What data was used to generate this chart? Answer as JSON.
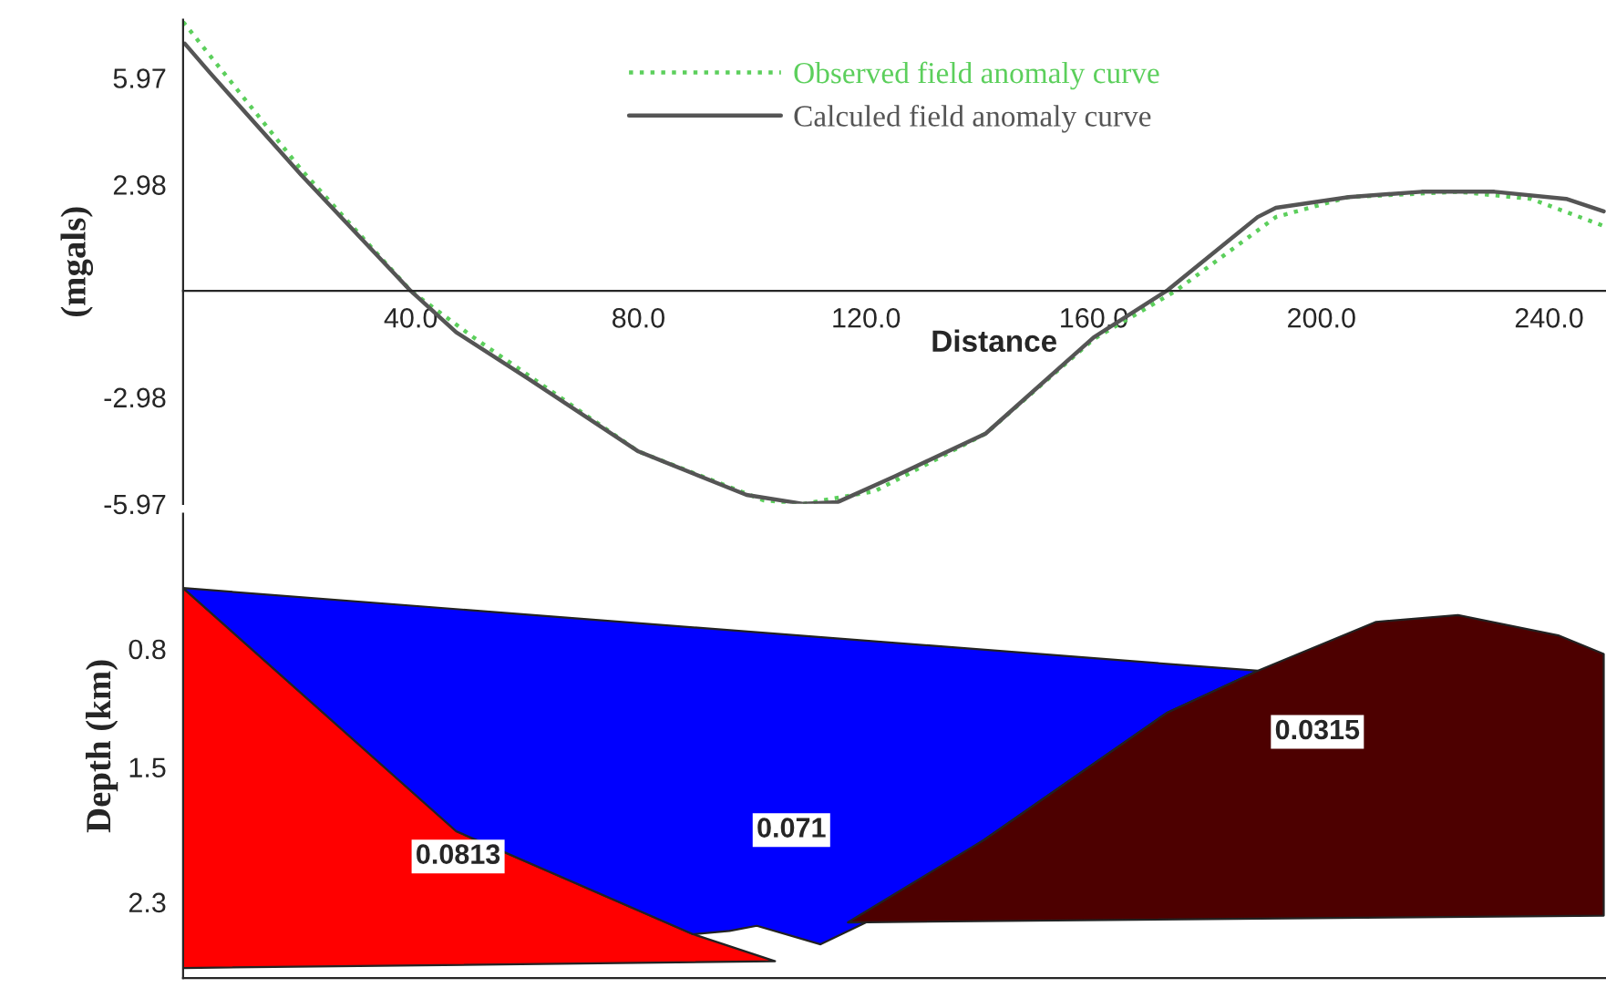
{
  "chart_data": [
    {
      "type": "line",
      "xlabel": "Distance",
      "ylabel": "(mgals)",
      "xlim": [
        0,
        250
      ],
      "xticks": [
        {
          "value": 40,
          "label": "40.0"
        },
        {
          "value": 80,
          "label": "80.0"
        },
        {
          "value": 120,
          "label": "120.0"
        },
        {
          "value": 160,
          "label": "160.0"
        },
        {
          "value": 200,
          "label": "200.0"
        },
        {
          "value": 240,
          "label": "240.0"
        }
      ],
      "ylim": [
        -5.97,
        7.6
      ],
      "yticks": [
        -5.97,
        -2.98,
        2.98,
        5.97
      ],
      "legend": "top",
      "grid": false,
      "series": [
        {
          "name": "Observed field anomaly curve",
          "color": "#5ccf5c",
          "line_style": "dotted",
          "x": [
            0,
            20.8,
            40,
            51,
            80,
            102,
            109,
            121.6,
            141,
            160,
            174.4,
            192,
            204.8,
            224,
            236.8,
            249.6
          ],
          "values": [
            7.54,
            3.39,
            0,
            -1.3,
            -4.5,
            -5.87,
            -5.97,
            -5.61,
            -4.0,
            -1.35,
            0,
            2.07,
            2.63,
            2.78,
            2.58,
            1.82
          ]
        },
        {
          "name": "Calculed field anomaly curve",
          "color": "#555555",
          "line_style": "solid",
          "x": [
            0.3,
            4.8,
            20.8,
            40,
            48,
            60.8,
            80,
            99,
            109,
            115,
            125,
            141,
            160,
            172.8,
            188.8,
            192,
            204.8,
            217.6,
            230.4,
            243,
            249.6
          ],
          "values": [
            6.93,
            6.1,
            3.24,
            0,
            -1.16,
            -2.48,
            -4.5,
            -5.72,
            -5.97,
            -5.92,
            -5.2,
            -4.0,
            -1.3,
            0,
            2.07,
            2.33,
            2.63,
            2.78,
            2.78,
            2.58,
            2.23
          ]
        }
      ]
    },
    {
      "type": "area",
      "ylabel": "Depth (km)",
      "xlim": [
        0,
        250
      ],
      "ylim": [
        2.75,
        0
      ],
      "yticks": [
        0.8,
        1.5,
        2.3
      ],
      "tick_labels": "y",
      "grid": false,
      "series": [
        {
          "name": "0.0813",
          "color": "#ff0000",
          "x": [
            0,
            48,
            89.6,
            104,
            0
          ],
          "values": [
            0.44,
            1.88,
            2.49,
            2.65,
            2.69
          ]
        },
        {
          "name": "0.071",
          "color": "#0000ff",
          "x": [
            0,
            188.8,
            172.8,
            140.8,
            120,
            112,
            100.8,
            96,
            89.6,
            48
          ],
          "values": [
            0.44,
            0.93,
            1.18,
            1.93,
            2.42,
            2.55,
            2.44,
            2.47,
            2.49,
            1.88
          ]
        },
        {
          "name": "0.0315",
          "color": "#4d0000",
          "x": [
            116.8,
            140.8,
            172.8,
            188.8,
            209.6,
            224,
            241.6,
            249.6,
            249.6
          ],
          "values": [
            2.42,
            1.93,
            1.18,
            0.93,
            0.64,
            0.6,
            0.72,
            0.83,
            2.38
          ]
        }
      ]
    }
  ]
}
